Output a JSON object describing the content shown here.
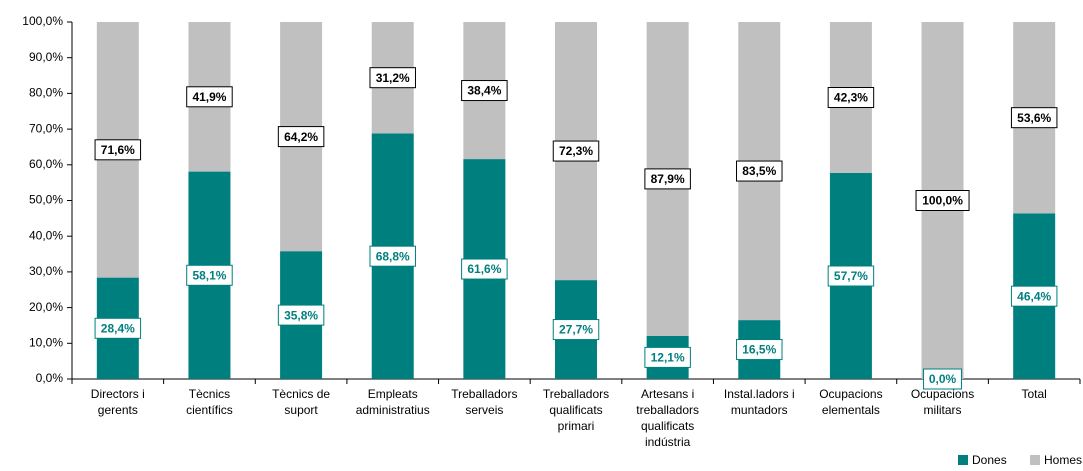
{
  "chart_data": {
    "type": "stacked_bar",
    "categories": [
      "Directors i gerents",
      "Tècnics científics",
      "Tècnics de suport",
      "Empleats administratius",
      "Treballadors serveis",
      "Treballadors qualificats primari",
      "Artesans i treballadors qualificats indústria",
      "Instal.ladors i muntadors",
      "Ocupacions elementals",
      "Ocupacions militars",
      "Total"
    ],
    "series": [
      {
        "name": "Dones",
        "color": "#007f7f",
        "values": [
          28.4,
          58.1,
          35.8,
          68.8,
          61.6,
          27.7,
          12.1,
          16.5,
          57.7,
          0.0,
          46.4
        ],
        "value_labels": [
          "28,4%",
          "58,1%",
          "35,8%",
          "68,8%",
          "61,6%",
          "27,7%",
          "12,1%",
          "16,5%",
          "57,7%",
          "0,0%",
          "46,4%"
        ]
      },
      {
        "name": "Homes",
        "color": "#c0c0c0",
        "values": [
          71.6,
          41.9,
          64.2,
          31.2,
          38.4,
          72.3,
          87.9,
          83.5,
          42.3,
          100.0,
          53.6
        ],
        "value_labels": [
          "71,6%",
          "41,9%",
          "64,2%",
          "31,2%",
          "38,4%",
          "72,3%",
          "87,9%",
          "83,5%",
          "42,3%",
          "100,0%",
          "53,6%"
        ]
      }
    ],
    "ylim": [
      0,
      100
    ],
    "yticks": [
      {
        "value": 0,
        "label": "0,0%"
      },
      {
        "value": 10,
        "label": "10,0%"
      },
      {
        "value": 20,
        "label": "20,0%"
      },
      {
        "value": 30,
        "label": "30,0%"
      },
      {
        "value": 40,
        "label": "40,0%"
      },
      {
        "value": 50,
        "label": "50,0%"
      },
      {
        "value": 60,
        "label": "60,0%"
      },
      {
        "value": 70,
        "label": "70,0%"
      },
      {
        "value": 80,
        "label": "80,0%"
      },
      {
        "value": 90,
        "label": "90,0%"
      },
      {
        "value": 100,
        "label": "100,0%"
      }
    ],
    "legend": "bottom-right"
  }
}
